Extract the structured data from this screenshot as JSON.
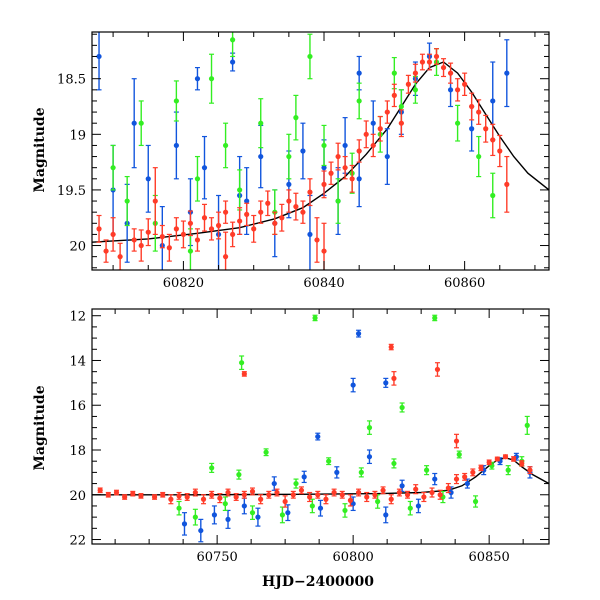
{
  "figure": {
    "xlabel_bottom": "HJD−2400000"
  },
  "colors": {
    "red": "#ff3b28",
    "green": "#33ee22",
    "blue": "#1155dd",
    "model": "#000000"
  },
  "chart_data": [
    {
      "type": "scatter",
      "name": "top-panel",
      "xlabel": "",
      "ylabel": "Magnitude",
      "xlim": [
        60807,
        60872
      ],
      "ylim": [
        20.22,
        18.08
      ],
      "y_inverted": true,
      "xticks": [
        60820,
        60840,
        60860
      ],
      "yticks": [
        18.5,
        19,
        19.5,
        20
      ],
      "ytick_labels": [
        "18.5",
        "19",
        "19.5",
        "20"
      ],
      "model_curve": {
        "x": [
          60807,
          60815,
          60822,
          60828,
          60833,
          60837,
          60840,
          60843,
          60846,
          60849,
          60851,
          60853,
          60855,
          60857,
          60859,
          60861,
          60863,
          60865,
          60867,
          60869,
          60872
        ],
        "y": [
          19.97,
          19.94,
          19.89,
          19.84,
          19.76,
          19.66,
          19.53,
          19.38,
          19.18,
          18.95,
          18.75,
          18.55,
          18.4,
          18.35,
          18.45,
          18.62,
          18.82,
          19.02,
          19.2,
          19.35,
          19.5
        ]
      },
      "series": [
        {
          "color": "red",
          "x": [
            60808,
            60809,
            60810,
            60811,
            60813,
            60814,
            60815,
            60817,
            60818,
            60819,
            60820,
            60821,
            60822,
            60823,
            60824,
            60825,
            60826,
            60827,
            60828,
            60829,
            60830,
            60831,
            60832,
            60833,
            60834,
            60835,
            60836,
            60837,
            60838,
            60839,
            60840,
            60841,
            60842,
            60843,
            60844,
            60845,
            60846,
            60847,
            60848,
            60849,
            60850,
            60851,
            60852,
            60853,
            60854,
            60855,
            60856,
            60857,
            60858,
            60859,
            60860,
            60861,
            60862,
            60863,
            60864,
            60865,
            60866,
            60840,
            60826,
            60816
          ],
          "y": [
            19.85,
            20.05,
            19.9,
            20.1,
            19.95,
            20.0,
            19.88,
            19.92,
            20.02,
            19.85,
            19.9,
            19.8,
            19.95,
            19.75,
            19.85,
            19.82,
            19.7,
            19.9,
            19.78,
            19.72,
            19.85,
            19.7,
            19.62,
            19.8,
            19.75,
            19.6,
            19.65,
            19.7,
            19.52,
            19.95,
            19.45,
            19.35,
            19.2,
            19.3,
            19.4,
            19.15,
            19.0,
            19.1,
            18.95,
            18.8,
            18.65,
            18.9,
            18.55,
            18.45,
            18.35,
            18.35,
            18.3,
            18.4,
            18.45,
            18.6,
            18.55,
            18.75,
            18.8,
            18.95,
            19.05,
            19.15,
            19.45,
            20.05,
            20.1,
            19.6
          ],
          "err": [
            0.12,
            0.1,
            0.15,
            0.12,
            0.1,
            0.14,
            0.12,
            0.1,
            0.12,
            0.1,
            0.12,
            0.11,
            0.1,
            0.12,
            0.1,
            0.12,
            0.1,
            0.11,
            0.12,
            0.1,
            0.12,
            0.1,
            0.11,
            0.1,
            0.12,
            0.1,
            0.12,
            0.1,
            0.12,
            0.2,
            0.12,
            0.1,
            0.12,
            0.1,
            0.12,
            0.1,
            0.12,
            0.1,
            0.11,
            0.1,
            0.1,
            0.12,
            0.08,
            0.08,
            0.07,
            0.07,
            0.07,
            0.08,
            0.09,
            0.1,
            0.1,
            0.12,
            0.11,
            0.12,
            0.14,
            0.14,
            0.25,
            0.25,
            0.22,
            0.3
          ]
        },
        {
          "color": "green",
          "x": [
            60810,
            60812,
            60814,
            60816,
            60819,
            60822,
            60824,
            60826,
            60828,
            60831,
            60833,
            60835,
            60838,
            60840,
            60842,
            60845,
            60848,
            60850,
            60853,
            60856,
            60859,
            60862,
            60864,
            60827,
            60821,
            60844,
            60851,
            60836
          ],
          "y": [
            19.3,
            19.6,
            18.9,
            19.8,
            18.7,
            19.4,
            18.5,
            19.1,
            19.5,
            18.9,
            19.7,
            19.2,
            18.3,
            19.1,
            19.6,
            18.7,
            19.0,
            18.45,
            18.6,
            18.35,
            18.9,
            19.2,
            19.55,
            18.15,
            20.05,
            19.35,
            18.75,
            18.85
          ],
          "err": [
            0.2,
            0.22,
            0.2,
            0.25,
            0.18,
            0.2,
            0.22,
            0.2,
            0.18,
            0.22,
            0.2,
            0.2,
            0.2,
            0.18,
            0.2,
            0.16,
            0.16,
            0.14,
            0.12,
            0.12,
            0.16,
            0.18,
            0.2,
            0.15,
            0.2,
            0.18,
            0.15,
            0.2
          ]
        },
        {
          "color": "blue",
          "x": [
            60808,
            60810,
            60812,
            60813,
            60815,
            60817,
            60819,
            60821,
            60823,
            60825,
            60827,
            60829,
            60831,
            60833,
            60835,
            60837,
            60838,
            60840,
            60842,
            60843,
            60845,
            60847,
            60849,
            60851,
            60853,
            60855,
            60858,
            60861,
            60864,
            60866,
            60828,
            60822,
            60845
          ],
          "y": [
            18.3,
            19.5,
            19.8,
            18.9,
            19.4,
            20.0,
            19.1,
            19.7,
            19.3,
            19.9,
            18.35,
            19.6,
            19.2,
            19.8,
            19.45,
            19.15,
            19.9,
            19.3,
            19.6,
            19.1,
            19.4,
            18.9,
            19.2,
            18.8,
            18.5,
            18.3,
            18.6,
            18.95,
            18.7,
            18.45,
            19.55,
            18.5,
            18.45
          ],
          "err": [
            0.3,
            0.4,
            0.35,
            0.4,
            0.3,
            0.35,
            0.3,
            0.3,
            0.28,
            0.35,
            0.08,
            0.3,
            0.28,
            0.3,
            0.3,
            0.25,
            0.35,
            0.25,
            0.3,
            0.25,
            0.25,
            0.2,
            0.25,
            0.2,
            0.15,
            0.12,
            0.15,
            0.2,
            0.35,
            0.3,
            0.35,
            0.1,
            0.15
          ]
        }
      ]
    },
    {
      "type": "scatter",
      "name": "bottom-panel",
      "xlabel": "HJD−2400000",
      "ylabel": "Magnitude",
      "xlim": [
        60704,
        60872
      ],
      "ylim": [
        22.2,
        11.7
      ],
      "y_inverted": true,
      "xticks": [
        60750,
        60800,
        60850
      ],
      "yticks": [
        12,
        14,
        16,
        18,
        20,
        22
      ],
      "ytick_labels": [
        "12",
        "14",
        "16",
        "18",
        "20",
        "22"
      ],
      "model_curve": {
        "x": [
          60704,
          60740,
          60780,
          60810,
          60825,
          60835,
          60840,
          60845,
          60850,
          60853,
          60856,
          60859,
          60862,
          60866,
          60872
        ],
        "y": [
          20.0,
          20.0,
          19.98,
          19.95,
          19.9,
          19.8,
          19.6,
          19.2,
          18.7,
          18.45,
          18.35,
          18.45,
          18.75,
          19.1,
          19.5
        ]
      },
      "series": [
        {
          "color": "red",
          "x": [
            60707,
            60710,
            60713,
            60716,
            60719,
            60722,
            60727,
            60730,
            60733,
            60736,
            60739,
            60742,
            60745,
            60748,
            60751,
            60754,
            60757,
            60760,
            60763,
            60766,
            60769,
            60772,
            60775,
            60778,
            60781,
            60784,
            60787,
            60790,
            60793,
            60796,
            60799,
            60802,
            60805,
            60808,
            60811,
            60814,
            60817,
            60820,
            60823,
            60826,
            60829,
            60832,
            60835,
            60838,
            60841,
            60844,
            60847,
            60850,
            60853,
            60856,
            60859,
            60862,
            60865,
            60760,
            60814,
            60815,
            60831,
            60838
          ],
          "y": [
            19.8,
            20.0,
            19.9,
            20.1,
            19.95,
            20.05,
            20.1,
            20.0,
            20.2,
            20.05,
            20.1,
            19.9,
            20.2,
            20.0,
            20.15,
            19.9,
            20.1,
            20.0,
            19.85,
            20.2,
            20.0,
            19.9,
            20.3,
            20.0,
            19.8,
            20.1,
            20.0,
            20.2,
            19.9,
            20.0,
            20.25,
            19.9,
            20.1,
            20.0,
            19.8,
            20.2,
            19.9,
            20.0,
            19.75,
            20.1,
            19.9,
            20.0,
            19.7,
            19.3,
            19.2,
            19.0,
            18.8,
            18.55,
            18.4,
            18.3,
            18.4,
            18.6,
            18.9,
            14.6,
            13.4,
            14.8,
            14.4,
            17.6
          ],
          "err": [
            0.1,
            0.1,
            0.1,
            0.1,
            0.1,
            0.1,
            0.1,
            0.1,
            0.2,
            0.15,
            0.15,
            0.15,
            0.2,
            0.15,
            0.2,
            0.15,
            0.15,
            0.15,
            0.15,
            0.2,
            0.15,
            0.15,
            0.25,
            0.15,
            0.15,
            0.2,
            0.15,
            0.2,
            0.15,
            0.15,
            0.25,
            0.15,
            0.2,
            0.15,
            0.15,
            0.2,
            0.15,
            0.15,
            0.2,
            0.2,
            0.2,
            0.2,
            0.2,
            0.2,
            0.15,
            0.15,
            0.12,
            0.1,
            0.08,
            0.08,
            0.1,
            0.12,
            0.15,
            0.1,
            0.12,
            0.3,
            0.3,
            0.3
          ]
        },
        {
          "color": "green",
          "x": [
            60736,
            60742,
            60748,
            60753,
            60758,
            60763,
            60768,
            60774,
            60779,
            60785,
            60791,
            60797,
            60803,
            60809,
            60815,
            60821,
            60827,
            60833,
            60839,
            60845,
            60851,
            60857,
            60862,
            60864,
            60786,
            60759,
            60830,
            60806,
            60818
          ],
          "y": [
            20.6,
            21.0,
            18.8,
            20.4,
            19.1,
            20.8,
            18.1,
            20.9,
            19.5,
            20.5,
            18.5,
            20.7,
            19.0,
            20.3,
            18.6,
            20.6,
            18.9,
            20.1,
            18.2,
            20.3,
            18.7,
            18.9,
            18.5,
            16.9,
            12.1,
            14.1,
            12.1,
            17.0,
            16.1
          ],
          "err": [
            0.3,
            0.35,
            0.2,
            0.3,
            0.2,
            0.3,
            0.15,
            0.35,
            0.2,
            0.3,
            0.15,
            0.3,
            0.2,
            0.3,
            0.2,
            0.3,
            0.2,
            0.25,
            0.15,
            0.25,
            0.15,
            0.2,
            0.2,
            0.4,
            0.12,
            0.3,
            0.12,
            0.3,
            0.2
          ]
        },
        {
          "color": "blue",
          "x": [
            60738,
            60744,
            60749,
            60754,
            60760,
            60765,
            60771,
            60776,
            60782,
            60788,
            60794,
            60800,
            60806,
            60812,
            60818,
            60824,
            60830,
            60836,
            60842,
            60848,
            60854,
            60860,
            60865,
            60802,
            60800,
            60812,
            60787
          ],
          "y": [
            21.3,
            21.6,
            20.9,
            21.1,
            20.5,
            21.0,
            19.5,
            20.8,
            19.2,
            20.6,
            19.0,
            20.4,
            18.3,
            20.9,
            19.6,
            20.5,
            19.3,
            19.9,
            19.5,
            18.9,
            18.5,
            18.3,
            19.0,
            12.8,
            15.1,
            15.0,
            17.4
          ],
          "err": [
            0.5,
            0.5,
            0.4,
            0.4,
            0.35,
            0.4,
            0.3,
            0.35,
            0.25,
            0.35,
            0.25,
            0.3,
            0.3,
            0.35,
            0.25,
            0.3,
            0.25,
            0.25,
            0.2,
            0.2,
            0.15,
            0.15,
            0.25,
            0.15,
            0.3,
            0.2,
            0.15
          ]
        }
      ]
    }
  ]
}
